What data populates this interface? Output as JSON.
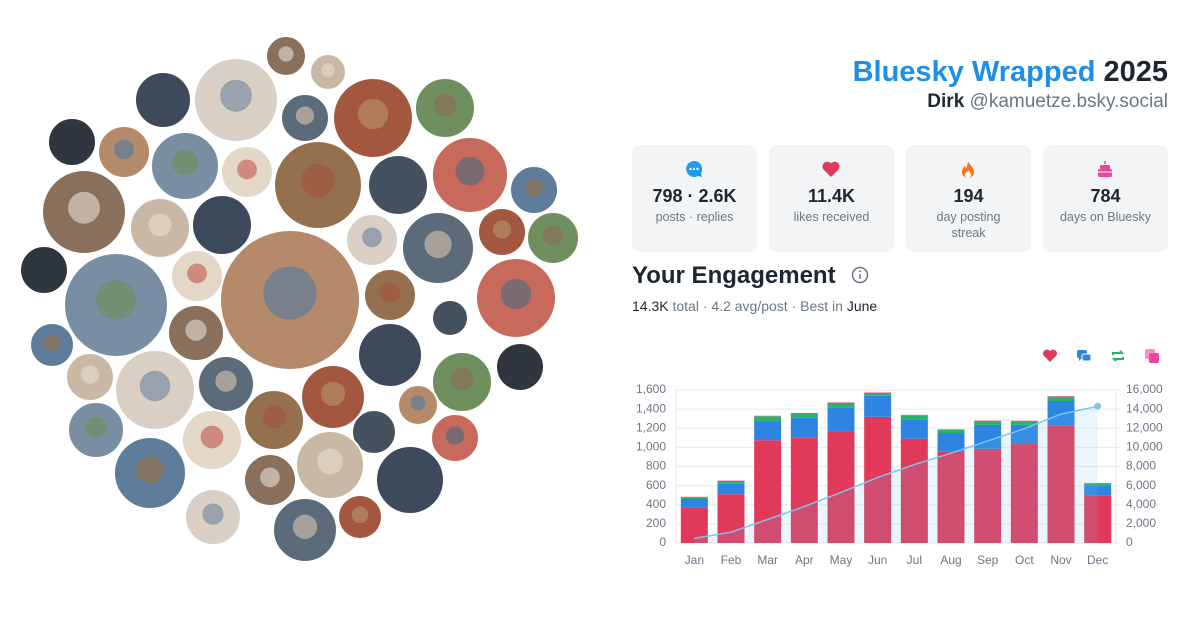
{
  "header": {
    "title": "Bluesky Wrapped",
    "year": "2025",
    "name": "Dirk",
    "handle": "@kamuetze.bsky.social"
  },
  "stats": [
    {
      "value": "798 · 2.6K",
      "label": "posts · replies",
      "color": "#1d9bf0"
    },
    {
      "value": "11.4K",
      "label": "likes received",
      "color": "#e0395a"
    },
    {
      "value": "194",
      "label": "day posting streak",
      "color": "#f97316"
    },
    {
      "value": "784",
      "label": "days on Bluesky",
      "color": "#ec4899"
    }
  ],
  "engagement": {
    "title": "Your Engagement",
    "total": "14.3K",
    "total_label": "total",
    "separator": "·",
    "average": "4.2 avg/post",
    "best_label": "Best in",
    "best_month": "June"
  },
  "chart_data": {
    "type": "bar",
    "stacked": true,
    "categories": [
      "Jan",
      "Feb",
      "Mar",
      "Apr",
      "May",
      "Jun",
      "Jul",
      "Aug",
      "Sep",
      "Oct",
      "Nov",
      "Dec"
    ],
    "series": [
      {
        "color": "#e0395a",
        "values": [
          370,
          510,
          1075,
          1100,
          1170,
          1320,
          1090,
          960,
          985,
          1035,
          1225,
          500
        ]
      },
      {
        "color": "#2d84e3",
        "values": [
          90,
          110,
          200,
          210,
          250,
          220,
          200,
          190,
          250,
          200,
          260,
          105
        ]
      },
      {
        "color": "#27b46a",
        "values": [
          20,
          30,
          50,
          45,
          45,
          30,
          45,
          35,
          40,
          40,
          45,
          20
        ]
      },
      {
        "color": "#ec4899",
        "values": [
          3,
          4,
          6,
          5,
          6,
          5,
          5,
          4,
          5,
          4,
          6,
          3
        ]
      },
      {
        "type": "line",
        "axis": "y2",
        "color": "#7cc4ec",
        "values": [
          480,
          1130,
          2460,
          3820,
          5290,
          6860,
          8200,
          9390,
          10670,
          11950,
          13480,
          14300
        ]
      }
    ],
    "ylim": [
      0,
      1600
    ],
    "yticks": [
      0,
      200,
      400,
      600,
      800,
      {
        "value": 1000,
        "label": "1,000"
      },
      {
        "value": 1200,
        "label": "1,200"
      },
      {
        "value": 1400,
        "label": "1,400"
      },
      {
        "value": 1600,
        "label": "1,600"
      }
    ],
    "y2lim": [
      0,
      16000
    ],
    "y2ticks": [
      0,
      {
        "value": 2000,
        "label": "2,000"
      },
      {
        "value": 4000,
        "label": "4,000"
      },
      {
        "value": 6000,
        "label": "6,000"
      },
      {
        "value": 8000,
        "label": "8,000"
      },
      {
        "value": 10000,
        "label": "10,000"
      },
      {
        "value": 12000,
        "label": "12,000"
      },
      {
        "value": 14000,
        "label": "14,000"
      },
      {
        "value": 16000,
        "label": "16,000"
      }
    ],
    "grid": true
  }
}
